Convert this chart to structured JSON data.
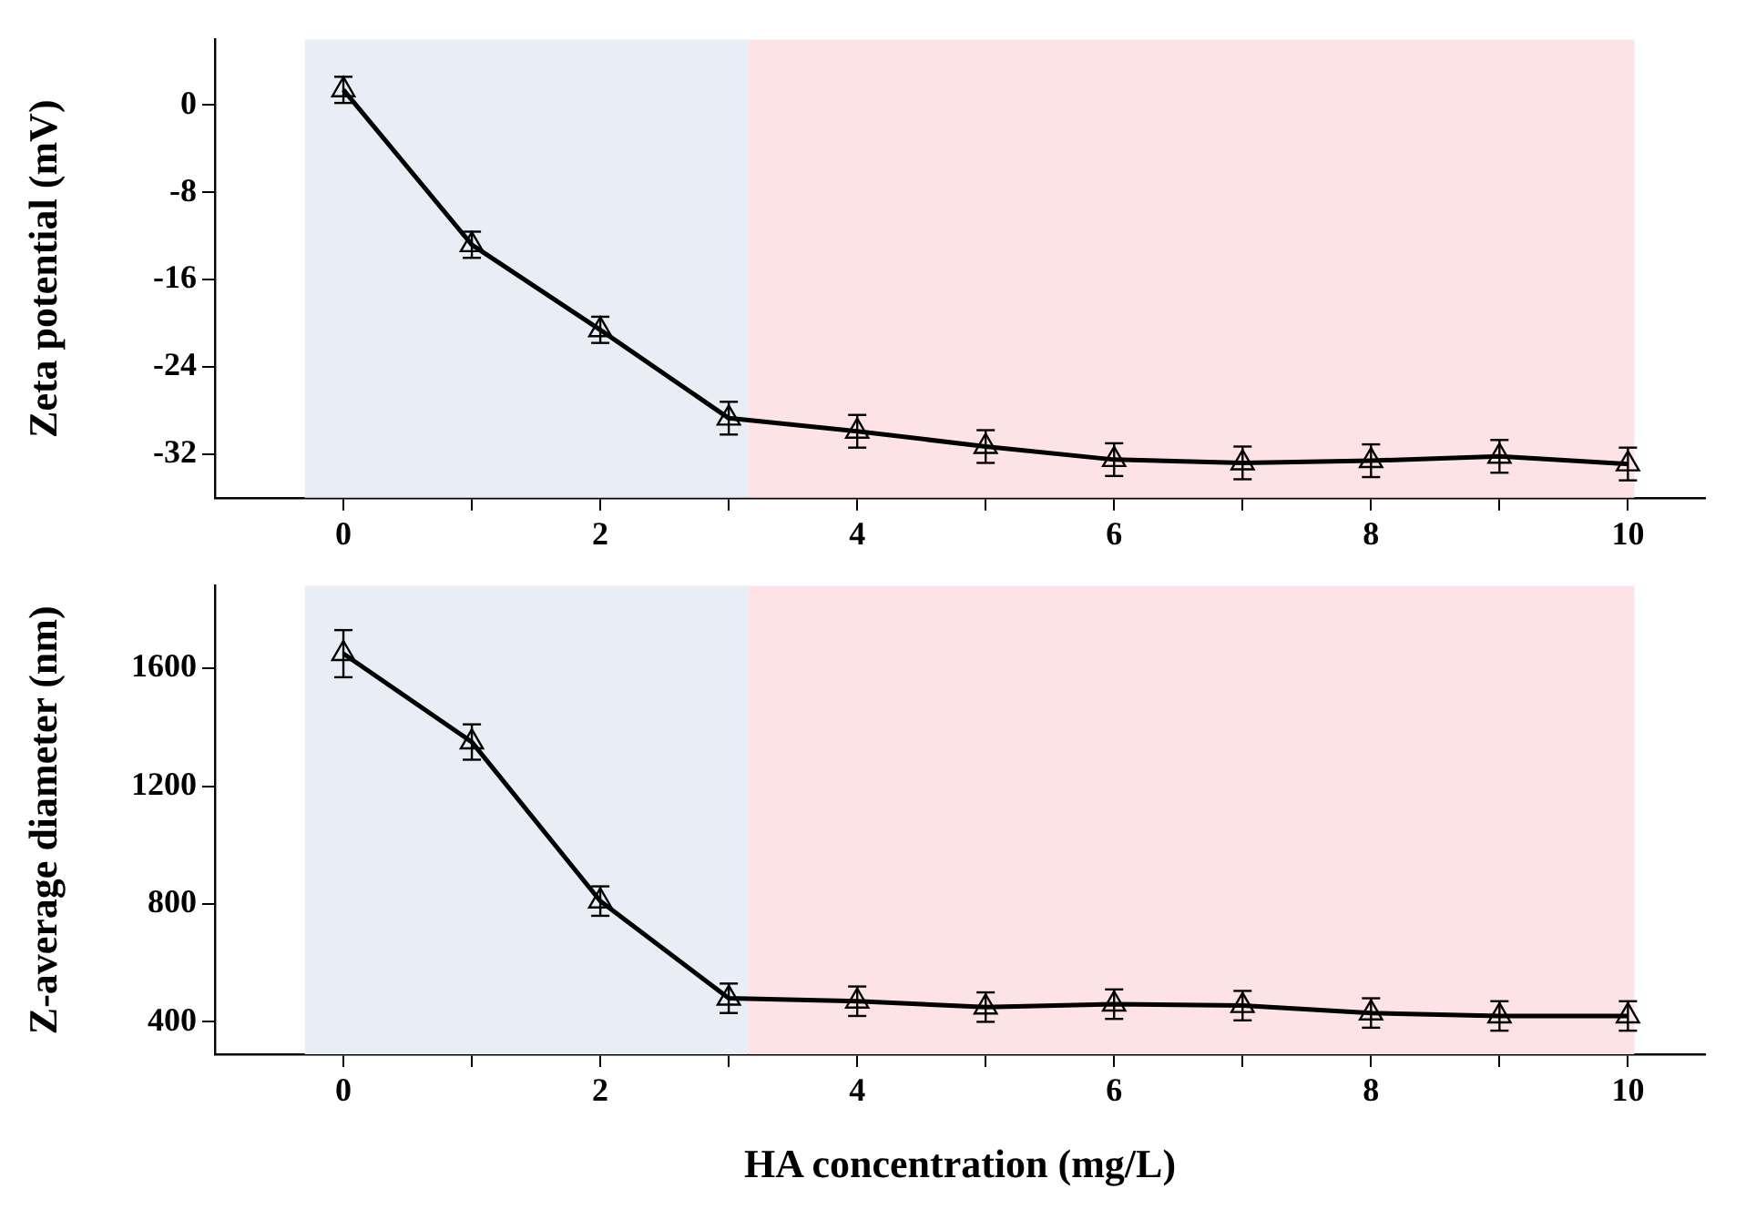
{
  "chart_data": [
    {
      "type": "line",
      "ylabel": "Zeta potential (mV)",
      "x": [
        0,
        1,
        2,
        3,
        4,
        5,
        6,
        7,
        8,
        9,
        10
      ],
      "series": [
        {
          "color": "#000000",
          "values": [
            1.4,
            -12.8,
            -20.6,
            -28.7,
            -29.9,
            -31.3,
            -32.5,
            -32.8,
            -32.6,
            -32.2,
            -32.9
          ],
          "errors": [
            1.2,
            1.2,
            1.2,
            1.5,
            1.5,
            1.5,
            1.5,
            1.5,
            1.5,
            1.5,
            1.5
          ]
        }
      ],
      "xlim": [
        -1,
        10.6
      ],
      "xticks": [
        0,
        {
          "value": 1,
          "label": null
        },
        2,
        {
          "value": 3,
          "label": null
        },
        4,
        {
          "value": 5,
          "label": null
        },
        6,
        {
          "value": 7,
          "label": null
        },
        8,
        {
          "value": 9,
          "label": null
        },
        10
      ],
      "ylim": [
        -36,
        6
      ],
      "yticks": [
        0,
        -8,
        -16,
        -24,
        -32
      ],
      "bands": [
        {
          "axis": "x",
          "from": -0.3,
          "to": 3.15,
          "color": "#e9eef6"
        },
        {
          "axis": "x",
          "from": 3.15,
          "to": 10.05,
          "color": "#fde3e5"
        }
      ],
      "marker": "triangle",
      "grid": false,
      "legend": false
    },
    {
      "type": "line",
      "xlabel": "HA concentration (mg/L)",
      "ylabel": "Z-average diameter (nm)",
      "x": [
        0,
        1,
        2,
        3,
        4,
        5,
        6,
        7,
        8,
        9,
        10
      ],
      "series": [
        {
          "color": "#000000",
          "values": [
            1650,
            1350,
            810,
            480,
            470,
            450,
            460,
            455,
            430,
            420,
            420
          ],
          "errors": [
            80,
            60,
            50,
            50,
            50,
            50,
            50,
            50,
            50,
            50,
            50
          ]
        }
      ],
      "xlim": [
        -1,
        10.6
      ],
      "xticks": [
        0,
        {
          "value": 1,
          "label": null
        },
        2,
        {
          "value": 3,
          "label": null
        },
        4,
        {
          "value": 5,
          "label": null
        },
        6,
        {
          "value": 7,
          "label": null
        },
        8,
        {
          "value": 9,
          "label": null
        },
        10
      ],
      "ylim": [
        290,
        1880
      ],
      "yticks": [
        400,
        800,
        1200,
        1600
      ],
      "bands": [
        {
          "axis": "x",
          "from": -0.3,
          "to": 3.15,
          "color": "#e9eef6"
        },
        {
          "axis": "x",
          "from": 3.15,
          "to": 10.05,
          "color": "#fde3e5"
        }
      ],
      "marker": "triangle",
      "grid": false,
      "legend": false
    }
  ]
}
